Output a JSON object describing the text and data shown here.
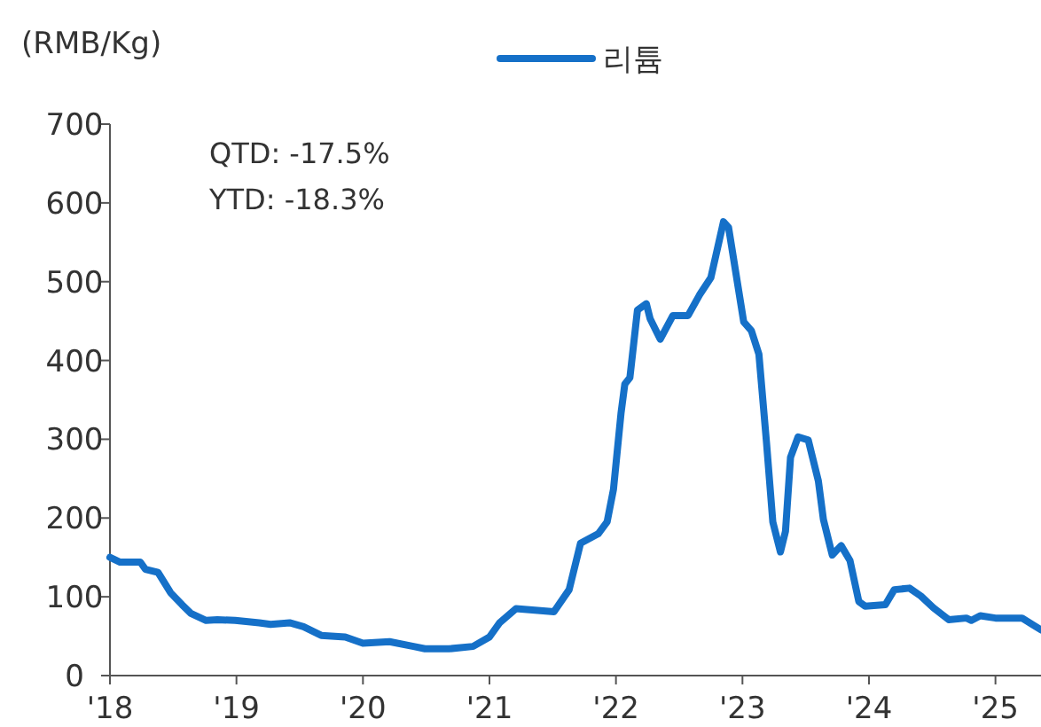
{
  "chart_data": {
    "type": "line",
    "ylabel": "(RMB/Kg)",
    "legend": "top",
    "annotations": [
      "QTD: -17.5%",
      "YTD: -18.3%"
    ],
    "xlim": [
      2018,
      2025.36
    ],
    "xticks": [
      {
        "value": 2018,
        "label": "'18"
      },
      {
        "value": 2019,
        "label": "'19"
      },
      {
        "value": 2020,
        "label": "'20"
      },
      {
        "value": 2021,
        "label": "'21"
      },
      {
        "value": 2022,
        "label": "'22"
      },
      {
        "value": 2023,
        "label": "'23"
      },
      {
        "value": 2024,
        "label": "'24"
      },
      {
        "value": 2025,
        "label": "'25"
      }
    ],
    "ylim": [
      0,
      700
    ],
    "yticks": [
      0,
      100,
      200,
      300,
      400,
      500,
      600,
      700
    ],
    "x": [
      2018.0,
      2018.08,
      2018.24,
      2018.28,
      2018.38,
      2018.48,
      2018.57,
      2018.64,
      2018.76,
      2018.85,
      2018.99,
      2019.18,
      2019.27,
      2019.42,
      2019.53,
      2019.67,
      2019.86,
      2020.0,
      2020.21,
      2020.4,
      2020.49,
      2020.68,
      2020.87,
      2021.0,
      2021.08,
      2021.21,
      2021.51,
      2021.63,
      2021.72,
      2021.86,
      2021.93,
      2021.98,
      2022.04,
      2022.07,
      2022.11,
      2022.17,
      2022.24,
      2022.27,
      2022.35,
      2022.45,
      2022.57,
      2022.66,
      2022.75,
      2022.85,
      2022.89,
      2023.01,
      2023.07,
      2023.13,
      2023.19,
      2023.24,
      2023.3,
      2023.34,
      2023.38,
      2023.44,
      2023.52,
      2023.6,
      2023.64,
      2023.71,
      2023.78,
      2023.85,
      2023.92,
      2023.97,
      2024.13,
      2024.2,
      2024.32,
      2024.41,
      2024.51,
      2024.63,
      2024.77,
      2024.81,
      2024.88,
      2025.0,
      2025.21,
      2025.3,
      2025.36
    ],
    "series": [
      {
        "name": "리튬",
        "color": "#1570c8",
        "values": [
          150,
          144,
          144,
          135,
          131,
          105,
          90,
          79,
          70,
          71,
          70,
          67,
          65,
          67,
          62,
          51,
          49,
          41,
          43,
          37,
          34,
          34,
          37,
          49,
          67,
          85,
          81,
          109,
          168,
          180,
          195,
          236,
          333,
          370,
          378,
          464,
          472,
          453,
          427,
          457,
          457,
          483,
          505,
          576,
          569,
          449,
          438,
          408,
          296,
          195,
          157,
          183,
          277,
          303,
          299,
          247,
          198,
          153,
          165,
          146,
          94,
          88,
          90,
          109,
          111,
          101,
          86,
          71,
          73,
          70,
          76,
          73,
          73,
          64,
          58
        ]
      }
    ]
  }
}
